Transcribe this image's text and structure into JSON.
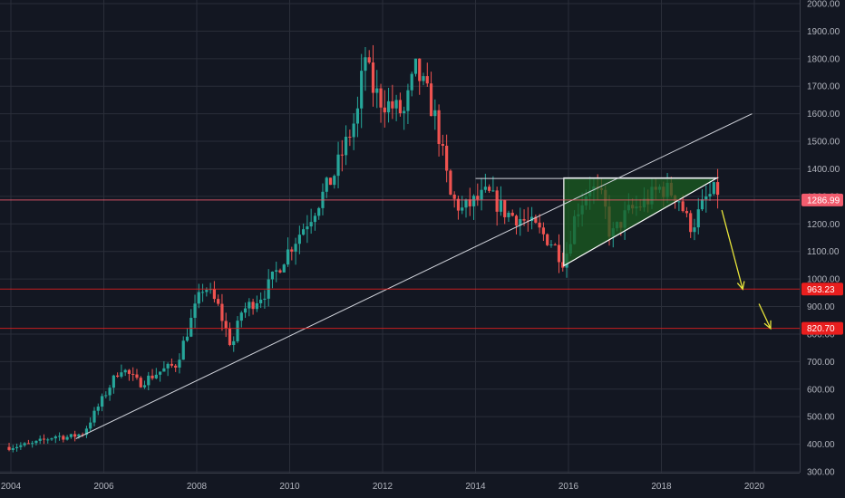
{
  "chart_data": {
    "type": "candlestick",
    "ylim": [
      290,
      2010
    ],
    "xlim": [
      2003.9,
      2021.0
    ],
    "y_ticks": [
      2000,
      1900,
      1800,
      1700,
      1600,
      1500,
      1400,
      1300,
      1200,
      1100,
      1000,
      900,
      800,
      700,
      600,
      500,
      400,
      300
    ],
    "y_tick_labels": [
      "2000.00",
      "1900.00",
      "1800.00",
      "1700.00",
      "1600.00",
      "1500.00",
      "1400.00",
      "1300.00",
      "1200.00",
      "1100.00",
      "1000.00",
      "900.00",
      "800.00",
      "700.00",
      "600.00",
      "500.00",
      "400.00",
      "300.00"
    ],
    "x_ticks": [
      2004,
      2006,
      2008,
      2010,
      2012,
      2014,
      2016,
      2018,
      2020
    ],
    "x_tick_labels": [
      "2004",
      "2006",
      "2008",
      "2010",
      "2012",
      "2014",
      "2016",
      "2018",
      "2020"
    ],
    "price_path": [
      [
        2004.0,
        390
      ],
      [
        2004.5,
        400
      ],
      [
        2005.0,
        430
      ],
      [
        2005.3,
        425
      ],
      [
        2005.6,
        440
      ],
      [
        2006.0,
        560
      ],
      [
        2006.4,
        680
      ],
      [
        2006.8,
        620
      ],
      [
        2007.2,
        660
      ],
      [
        2007.6,
        690
      ],
      [
        2008.0,
        890
      ],
      [
        2008.2,
        980
      ],
      [
        2008.5,
        900
      ],
      [
        2008.8,
        750
      ],
      [
        2009.0,
        880
      ],
      [
        2009.5,
        950
      ],
      [
        2010.0,
        1100
      ],
      [
        2010.5,
        1230
      ],
      [
        2011.0,
        1380
      ],
      [
        2011.5,
        1600
      ],
      [
        2011.66,
        1820
      ],
      [
        2011.8,
        1700
      ],
      [
        2012.0,
        1650
      ],
      [
        2012.3,
        1620
      ],
      [
        2012.5,
        1600
      ],
      [
        2012.75,
        1760
      ],
      [
        2013.0,
        1670
      ],
      [
        2013.2,
        1570
      ],
      [
        2013.5,
        1300
      ],
      [
        2013.75,
        1250
      ],
      [
        2014.0,
        1280
      ],
      [
        2014.3,
        1310
      ],
      [
        2014.7,
        1240
      ],
      [
        2015.0,
        1220
      ],
      [
        2015.3,
        1190
      ],
      [
        2015.7,
        1130
      ],
      [
        2015.95,
        1060
      ],
      [
        2016.2,
        1240
      ],
      [
        2016.5,
        1340
      ],
      [
        2016.8,
        1280
      ],
      [
        2016.95,
        1150
      ],
      [
        2017.3,
        1240
      ],
      [
        2017.7,
        1280
      ],
      [
        2018.0,
        1330
      ],
      [
        2018.2,
        1320
      ],
      [
        2018.4,
        1300
      ],
      [
        2018.6,
        1210
      ],
      [
        2018.7,
        1190
      ],
      [
        2019.0,
        1290
      ],
      [
        2019.2,
        1320
      ]
    ],
    "price_tags": [
      {
        "value": 1286.99,
        "label": "1286.99",
        "color": "#f25c6e"
      },
      {
        "value": 963.23,
        "label": "963.23",
        "color": "#e91e1e"
      },
      {
        "value": 820.7,
        "label": "820.70",
        "color": "#e91e1e"
      }
    ],
    "trendline": {
      "from": [
        2005.4,
        420
      ],
      "to": [
        2019.95,
        1600
      ],
      "color": "#d1d4dc"
    },
    "resistance_line": {
      "from": [
        2014.0,
        1365
      ],
      "to": [
        2019.2,
        1365
      ],
      "color": "#d1d4dc"
    },
    "triangle": {
      "points": [
        [
          2015.9,
          1048
        ],
        [
          2015.9,
          1367
        ],
        [
          2019.2,
          1367
        ]
      ],
      "fill": "#1b5e20",
      "stroke": "#ffffff"
    },
    "projection_arrows": [
      {
        "from": [
          2019.3,
          1250
        ],
        "to": [
          2019.75,
          963
        ],
        "color": "#e8e53a"
      },
      {
        "from": [
          2020.1,
          910
        ],
        "to": [
          2020.35,
          820
        ],
        "color": "#e8e53a"
      }
    ],
    "colors": {
      "background": "#131722",
      "up": "#26a69a",
      "down": "#ef5350",
      "grid": "#2a2e39",
      "axis_text": "#b2b5be"
    }
  }
}
